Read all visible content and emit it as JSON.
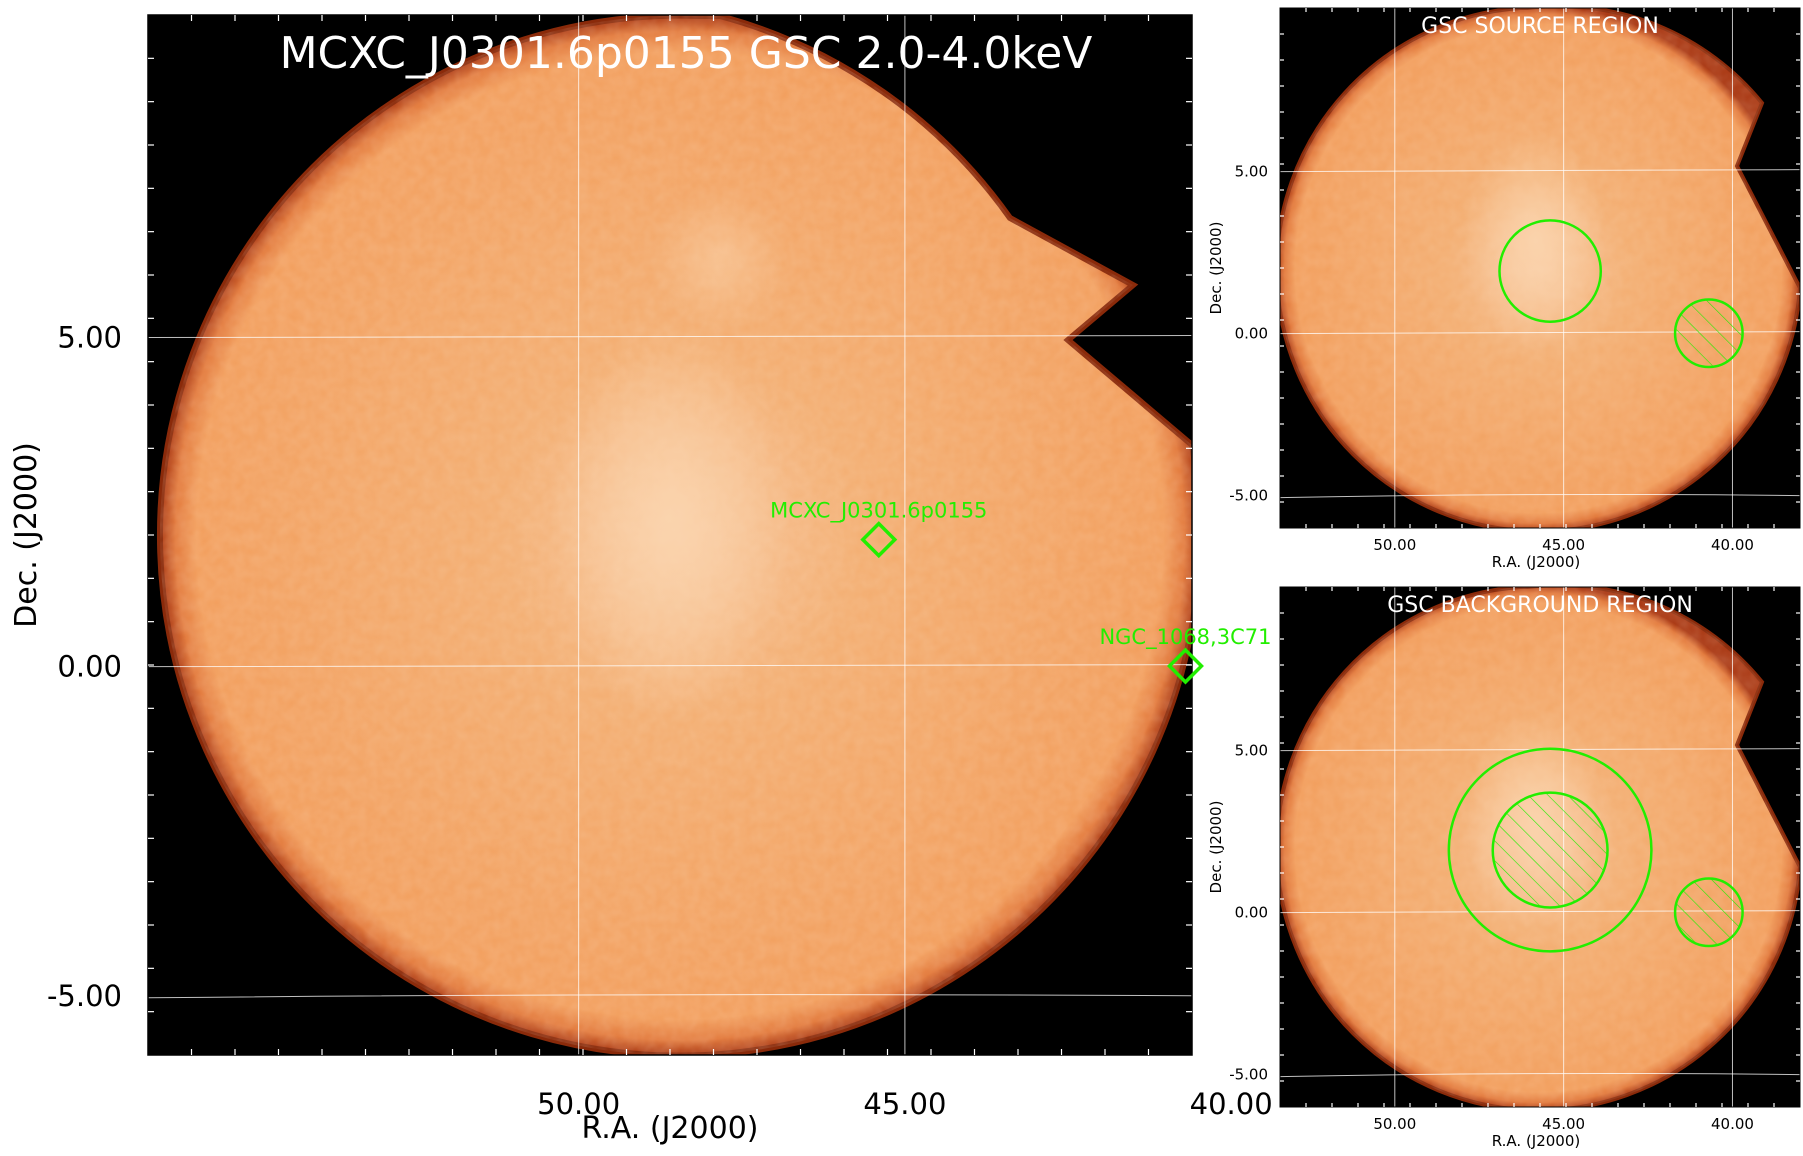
{
  "colors": {
    "sky": "#f2a05e",
    "sky_center": "#f7c59a",
    "edge": "#c44516",
    "background": "#000000",
    "region": "#22ee00",
    "grid": "#ffffff"
  },
  "chart_data": [
    {
      "type": "image",
      "title": "MCXC_J0301.6p0155 GSC 2.0-4.0keV",
      "xlabel": "R.A. (J2000)",
      "ylabel": "Dec. (J2000)",
      "x_ticks": [
        "50.00",
        "45.00",
        "40.00"
      ],
      "y_ticks": [
        "5.00",
        "0.00",
        "-5.00"
      ],
      "xlim": [
        56.6,
        40.6
      ],
      "ylim": [
        -5.9,
        9.9
      ],
      "sources": [
        {
          "name": "MCXC_J0301.6p0155",
          "ra": 45.4,
          "dec": 1.93
        },
        {
          "name": "NGC_1068,3C71",
          "ra": 40.7,
          "dec": 0.01
        }
      ]
    },
    {
      "type": "image",
      "title": "GSC SOURCE REGION",
      "xlabel": "R.A. (J2000)",
      "ylabel": "Dec. (J2000)",
      "x_ticks": [
        "50.00",
        "45.00",
        "40.00"
      ],
      "y_ticks": [
        "5.00",
        "0.00",
        "-5.00"
      ],
      "regions": [
        {
          "kind": "circle",
          "ra": 45.4,
          "dec": 1.93,
          "radius_deg": 1.5,
          "hatched": false
        },
        {
          "kind": "circle",
          "ra": 40.7,
          "dec": 0.01,
          "radius_deg": 1.0,
          "hatched": true
        }
      ]
    },
    {
      "type": "image",
      "title": "GSC BACKGROUND REGION",
      "xlabel": "R.A. (J2000)",
      "ylabel": "Dec. (J2000)",
      "x_ticks": [
        "50.00",
        "45.00",
        "40.00"
      ],
      "y_ticks": [
        "5.00",
        "0.00",
        "-5.00"
      ],
      "regions": [
        {
          "kind": "circle",
          "ra": 45.4,
          "dec": 1.93,
          "radius_deg": 3.0,
          "hatched": false
        },
        {
          "kind": "circle",
          "ra": 45.4,
          "dec": 1.93,
          "radius_deg": 1.7,
          "hatched": true
        },
        {
          "kind": "circle",
          "ra": 40.7,
          "dec": 0.01,
          "radius_deg": 1.0,
          "hatched": true
        }
      ]
    }
  ]
}
